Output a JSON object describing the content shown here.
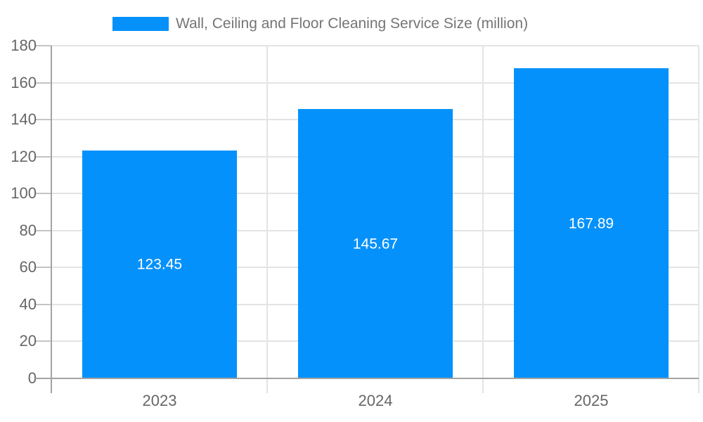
{
  "legend": {
    "label": "Wall, Ceiling and Floor Cleaning Service Size (million)"
  },
  "chart_data": {
    "type": "bar",
    "title": "Wall, Ceiling and Floor Cleaning Service Size (million)",
    "categories": [
      "2023",
      "2024",
      "2025"
    ],
    "values": [
      123.45,
      145.67,
      167.89
    ],
    "bar_labels": [
      "123.45",
      "145.67",
      "167.89"
    ],
    "xlabel": "",
    "ylabel": "",
    "ylim": [
      0,
      180
    ],
    "yticks": [
      0,
      20,
      40,
      60,
      80,
      100,
      120,
      140,
      160,
      180
    ],
    "ytick_labels": [
      "0",
      "20",
      "40",
      "60",
      "80",
      "100",
      "120",
      "140",
      "160",
      "180"
    ],
    "grid": true,
    "legend_position": "top-center",
    "colors": {
      "bar": "#0591fb",
      "bar_label_text": "#ffffff",
      "tick_text": "#666666",
      "legend_text": "#757575",
      "gridline": "#e4e4e4",
      "axis_line": "#a3a3a3",
      "tick_line": "#c4c4c4"
    }
  }
}
